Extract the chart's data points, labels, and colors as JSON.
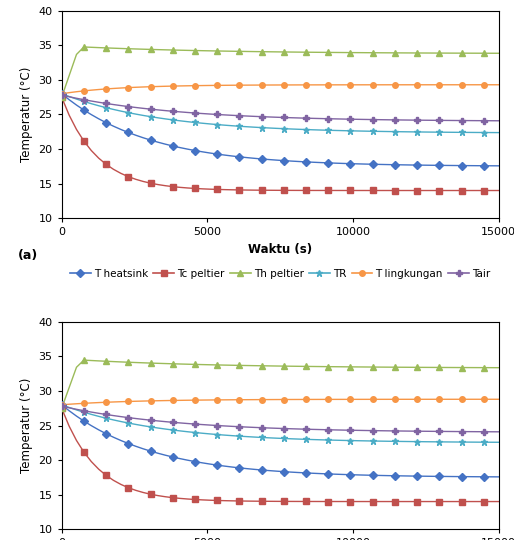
{
  "xlim": [
    0,
    15000
  ],
  "ylim": [
    10,
    40
  ],
  "yticks": [
    10,
    15,
    20,
    25,
    30,
    35,
    40
  ],
  "xticks": [
    0,
    5000,
    10000,
    15000
  ],
  "xlabel": "Waktu (s)",
  "ylabel": "Temperatur (°C)",
  "series": {
    "T_heatsink": {
      "color": "#4472C4",
      "marker": "D",
      "markersize": 4,
      "label": "T heatsink",
      "start": 28.0,
      "end_a": 17.5,
      "end_b": 17.5,
      "tau_a": 3000,
      "tau_b": 3000,
      "shape": "decay"
    },
    "Tc_peltier": {
      "color": "#C0504D",
      "marker": "s",
      "markersize": 4,
      "label": "Tc peltier",
      "start": 27.5,
      "end_a": 14.0,
      "end_b": 14.0,
      "tau_a": 1200,
      "tau_b": 1200,
      "shape": "fast_decay"
    },
    "Th_peltier": {
      "color": "#9BBB59",
      "marker": "^",
      "markersize": 4,
      "label": "Th peltier",
      "start": 27.5,
      "peak_a": 34.8,
      "peak_b": 34.5,
      "end_a": 33.8,
      "end_b": 33.3,
      "shape": "rise_decay"
    },
    "TR": {
      "color": "#4BACC6",
      "marker": "*",
      "markersize": 5,
      "label": "TR",
      "start": 28.0,
      "end_a": 22.3,
      "end_b": 22.5,
      "tau_a": 3500,
      "tau_b": 3500,
      "shape": "decay"
    },
    "T_lingkungan": {
      "color": "#F79646",
      "marker": "o",
      "markersize": 4,
      "label": "T lingkungan",
      "start": 28.0,
      "end_a": 29.3,
      "end_b": 28.8,
      "tau_a": 2000,
      "tau_b": 2500,
      "shape": "rise_flat"
    },
    "Tair": {
      "color": "#8064A2",
      "marker": "P",
      "markersize": 4,
      "label": "Tair",
      "start": 27.8,
      "end_a": 24.0,
      "end_b": 24.0,
      "tau_a": 4000,
      "tau_b": 4000,
      "shape": "decay"
    }
  },
  "n_points": 60,
  "marker_every": 3,
  "legend_fontsize": 7.5,
  "axis_fontsize": 8.5,
  "tick_fontsize": 8
}
